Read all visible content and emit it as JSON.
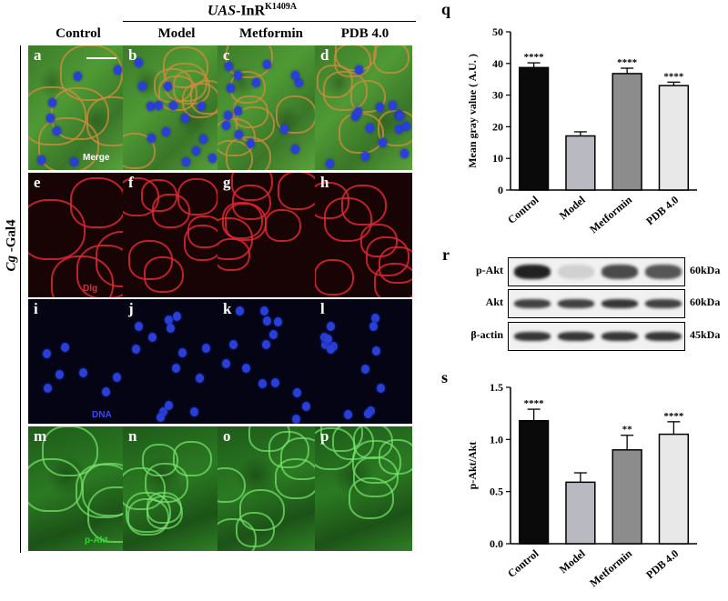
{
  "header": {
    "construct": "UAS",
    "construct_rest": "-InR",
    "construct_sup": "K1409A",
    "driver_prefix": "Cg",
    "driver_rest": " -Gal4"
  },
  "columns": [
    "Control",
    "Model",
    "Metformin",
    "PDB 4.0"
  ],
  "rows": [
    {
      "letters": [
        "a",
        "b",
        "c",
        "d"
      ],
      "tag": "Merge",
      "tag_color": "#ffffff"
    },
    {
      "letters": [
        "e",
        "f",
        "g",
        "h"
      ],
      "tag": "Dlg",
      "tag_color": "#e0303a"
    },
    {
      "letters": [
        "i",
        "j",
        "k",
        "l"
      ],
      "tag": "DNA",
      "tag_color": "#3a4af0"
    },
    {
      "letters": [
        "m",
        "n",
        "o",
        "p"
      ],
      "tag": "p-Akt",
      "tag_color": "#3ad23a"
    }
  ],
  "chart_data": [
    {
      "panel": "q",
      "type": "bar",
      "categories": [
        "Control",
        "Model",
        "Metformin",
        "PDB 4.0"
      ],
      "values": [
        38.7,
        17.1,
        36.8,
        33.0
      ],
      "errors": [
        1.5,
        1.3,
        1.7,
        1.1
      ],
      "significance": [
        "****",
        "",
        "****",
        "****"
      ],
      "bar_colors": [
        "#0a0a0a",
        "#b9b9c2",
        "#8c8c8c",
        "#e8e8e8"
      ],
      "ylabel": "Mean gray value ( A.U. )",
      "ylim": [
        0,
        50
      ],
      "yticks": [
        "0",
        "10",
        "20",
        "30",
        "40",
        "50"
      ]
    },
    {
      "panel": "s",
      "type": "bar",
      "categories": [
        "Control",
        "Model",
        "Metformin",
        "PDB 4.0"
      ],
      "values": [
        1.18,
        0.59,
        0.9,
        1.05
      ],
      "errors": [
        0.11,
        0.09,
        0.14,
        0.12
      ],
      "significance": [
        "****",
        "",
        "**",
        "****"
      ],
      "bar_colors": [
        "#0a0a0a",
        "#b9b9c2",
        "#8c8c8c",
        "#e8e8e8"
      ],
      "ylabel": "p-Akt/Akt",
      "ylim": [
        0,
        1.5
      ],
      "yticks": [
        "0.0",
        "0.5",
        "1.0",
        "1.5"
      ]
    }
  ],
  "western_blot": {
    "panel": "r",
    "bands": [
      {
        "label": "p-Akt",
        "size": "60kDa",
        "intensity": [
          1.0,
          0.15,
          0.8,
          0.75
        ]
      },
      {
        "label": "Akt",
        "size": "60kDa",
        "intensity": [
          0.85,
          0.85,
          0.9,
          0.85
        ]
      },
      {
        "label": "β-actin",
        "size": "45kDa",
        "intensity": [
          0.9,
          0.9,
          0.9,
          0.9
        ]
      }
    ]
  },
  "panel_letters": {
    "q": "q",
    "r": "r",
    "s": "s"
  }
}
